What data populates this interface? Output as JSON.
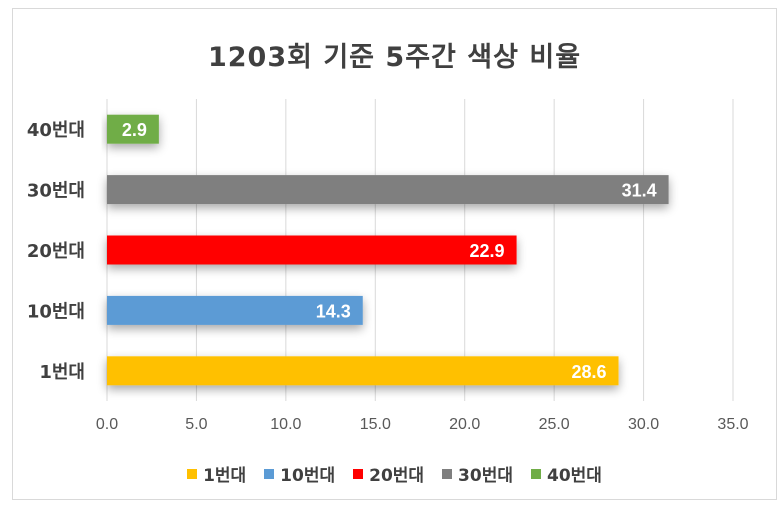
{
  "chart_data": {
    "type": "bar",
    "orientation": "horizontal",
    "title": "1203회 기준 5주간 색상 비율",
    "xlabel": "",
    "ylabel": "",
    "xlim": [
      0,
      35
    ],
    "x_ticks": [
      "0.0",
      "5.0",
      "10.0",
      "15.0",
      "20.0",
      "25.0",
      "30.0",
      "35.0"
    ],
    "grid": true,
    "legend_position": "bottom",
    "categories": [
      "40번대",
      "30번대",
      "20번대",
      "10번대",
      "1번대"
    ],
    "values": [
      2.9,
      31.4,
      22.9,
      14.3,
      28.6
    ],
    "value_labels": [
      "2.9",
      "31.4",
      "22.9",
      "14.3",
      "28.6"
    ],
    "colors": [
      "#70ad47",
      "#7f7f7f",
      "#ff0000",
      "#5b9bd5",
      "#ffc000"
    ],
    "legend": [
      {
        "label": "1번대",
        "color": "#ffc000"
      },
      {
        "label": "10번대",
        "color": "#5b9bd5"
      },
      {
        "label": "20번대",
        "color": "#ff0000"
      },
      {
        "label": "30번대",
        "color": "#7f7f7f"
      },
      {
        "label": "40번대",
        "color": "#70ad47"
      }
    ]
  }
}
